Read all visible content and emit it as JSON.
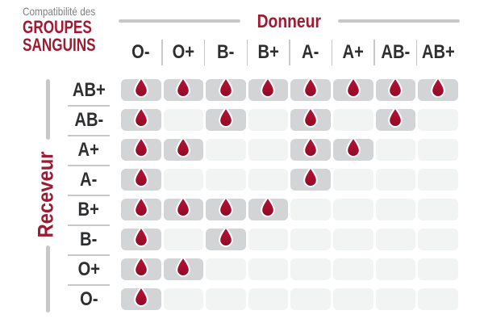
{
  "title": {
    "eyebrow": "Compatibilité des",
    "line1": "GROUPES",
    "line2": "SANGUINS"
  },
  "axes": {
    "donor": "Donneur",
    "receiver": "Receveur"
  },
  "colors": {
    "background": "#ffffff",
    "red_text": "#9e1b32",
    "drop_red": "#a60e2d",
    "drop_red_light": "#b41339",
    "drop_red_dark": "#8a0a25",
    "cell_compatible": "#d2d4d5",
    "cell_empty": "#f2f3f3",
    "label_dark": "#2e2f31",
    "muted_text": "#808184",
    "line_gray": "#c6c8ca"
  },
  "chart_data": {
    "type": "heatmap",
    "title": "Compatibilité des GROUPES SANGUINS",
    "x_axis_label": "Donneur",
    "y_axis_label": "Receveur",
    "x_categories": [
      "O-",
      "O+",
      "B-",
      "B+",
      "A-",
      "A+",
      "AB-",
      "AB+"
    ],
    "y_categories": [
      "AB+",
      "AB-",
      "A+",
      "A-",
      "B+",
      "B-",
      "O+",
      "O-"
    ],
    "marker": "blood-drop",
    "marker_meaning": "donor compatible with receiver",
    "values": [
      [
        1,
        1,
        1,
        1,
        1,
        1,
        1,
        1
      ],
      [
        1,
        0,
        1,
        0,
        1,
        0,
        1,
        0
      ],
      [
        1,
        1,
        0,
        0,
        1,
        1,
        0,
        0
      ],
      [
        1,
        0,
        0,
        0,
        1,
        0,
        0,
        0
      ],
      [
        1,
        1,
        1,
        1,
        0,
        0,
        0,
        0
      ],
      [
        1,
        0,
        1,
        0,
        0,
        0,
        0,
        0
      ],
      [
        1,
        1,
        0,
        0,
        0,
        0,
        0,
        0
      ],
      [
        1,
        0,
        0,
        0,
        0,
        0,
        0,
        0
      ]
    ]
  }
}
